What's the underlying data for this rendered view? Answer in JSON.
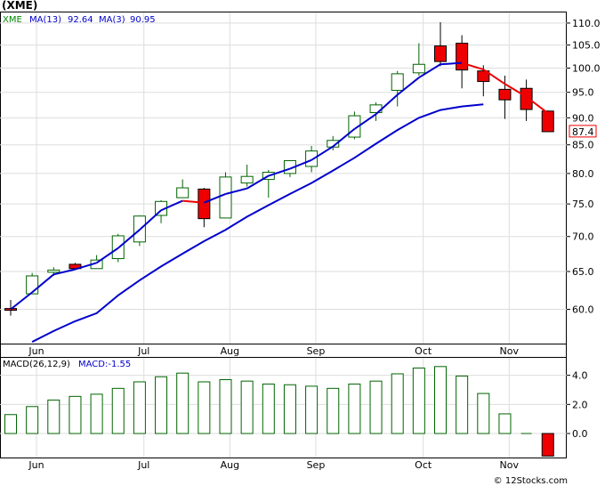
{
  "ticker_label": "(XME)",
  "watermark": "© 12Stocks.com",
  "colors": {
    "up": "#006400",
    "down": "#ee0000",
    "ma13": "#0000cc",
    "ma3_up": "#0000cc",
    "ma3_down": "#ee0000",
    "legend_symbol": "#008800",
    "macd_bar": "#006400",
    "macd_bar_neg": "#ee0000",
    "frame": "#000000",
    "grid": "#dddddd"
  },
  "legend": {
    "symbol": "XME",
    "ma13_label": "MA(13)",
    "ma13_value": "92.64",
    "ma3_label": "MA(3)",
    "ma3_value": "90.95"
  },
  "price_label": "87.4",
  "macd_legend": {
    "name": "MACD(26,12,9)",
    "value_text": "MACD:-1.55"
  },
  "chart_data": [
    {
      "type": "candlestick",
      "title": "(XME)",
      "y_ticks": [
        60,
        65,
        70,
        75,
        80,
        85,
        90,
        95,
        100,
        105,
        110
      ],
      "y_tick_labels": [
        "60.0",
        "65.0",
        "70.0",
        "75.0",
        "80.0",
        "85.0",
        "90.0",
        "95.0",
        "100.0",
        "105.0",
        "110.0"
      ],
      "ylim": [
        55.8,
        112.5
      ],
      "log_scale": true,
      "x_month_labels": [
        {
          "label": "Jun",
          "bar": 1.2
        },
        {
          "label": "Jul",
          "bar": 6.2
        },
        {
          "label": "Aug",
          "bar": 10.2
        },
        {
          "label": "Sep",
          "bar": 14.2
        },
        {
          "label": "Oct",
          "bar": 19.2
        },
        {
          "label": "Nov",
          "bar": 23.2
        }
      ],
      "bars": [
        {
          "open": 60.1,
          "high": 61.2,
          "low": 59.2,
          "close": 59.9
        },
        {
          "open": 62.0,
          "high": 64.8,
          "low": 62.0,
          "close": 64.4
        },
        {
          "open": 64.9,
          "high": 65.6,
          "low": 64.4,
          "close": 65.2
        },
        {
          "open": 66.0,
          "high": 66.2,
          "low": 65.2,
          "close": 65.4
        },
        {
          "open": 65.4,
          "high": 67.3,
          "low": 65.4,
          "close": 66.6
        },
        {
          "open": 66.8,
          "high": 70.4,
          "low": 66.3,
          "close": 70.1
        },
        {
          "open": 69.2,
          "high": 73.2,
          "low": 68.6,
          "close": 73.1
        },
        {
          "open": 73.2,
          "high": 75.6,
          "low": 72.0,
          "close": 75.4
        },
        {
          "open": 76.0,
          "high": 79.0,
          "low": 76.0,
          "close": 77.6
        },
        {
          "open": 77.4,
          "high": 77.6,
          "low": 71.4,
          "close": 72.7
        },
        {
          "open": 72.8,
          "high": 80.2,
          "low": 72.8,
          "close": 79.4
        },
        {
          "open": 78.4,
          "high": 81.5,
          "low": 77.8,
          "close": 79.5
        },
        {
          "open": 79.0,
          "high": 80.6,
          "low": 76.0,
          "close": 80.2
        },
        {
          "open": 80.0,
          "high": 82.2,
          "low": 79.4,
          "close": 82.2
        },
        {
          "open": 81.2,
          "high": 84.8,
          "low": 80.2,
          "close": 83.9
        },
        {
          "open": 84.6,
          "high": 86.6,
          "low": 84.0,
          "close": 85.8
        },
        {
          "open": 86.4,
          "high": 91.2,
          "low": 86.0,
          "close": 90.4
        },
        {
          "open": 91.0,
          "high": 93.0,
          "low": 89.4,
          "close": 92.5
        },
        {
          "open": 95.4,
          "high": 99.4,
          "low": 92.2,
          "close": 98.8
        },
        {
          "open": 99.0,
          "high": 105.4,
          "low": 98.4,
          "close": 100.8
        },
        {
          "open": 104.8,
          "high": 110.2,
          "low": 100.4,
          "close": 101.4
        },
        {
          "open": 105.4,
          "high": 107.2,
          "low": 95.8,
          "close": 99.6
        },
        {
          "open": 99.4,
          "high": 100.6,
          "low": 94.2,
          "close": 97.2
        },
        {
          "open": 95.6,
          "high": 98.4,
          "low": 89.8,
          "close": 93.5
        },
        {
          "open": 95.8,
          "high": 97.6,
          "low": 89.4,
          "close": 91.6
        },
        {
          "open": 91.3,
          "high": 91.4,
          "low": 87.4,
          "close": 87.4
        }
      ],
      "ma13": [
        56.0,
        57.3,
        58.5,
        59.5,
        61.8,
        63.8,
        65.7,
        67.5,
        69.3,
        71.0,
        73.0,
        74.8,
        76.6,
        78.4,
        80.5,
        82.7,
        85.2,
        87.7,
        90.0,
        91.5,
        92.2,
        92.6
      ],
      "ma13_start_bar": 1,
      "ma3": [
        60.0,
        62.2,
        64.6,
        65.3,
        66.2,
        68.3,
        71.0,
        74.0,
        75.5,
        75.2,
        76.6,
        77.5,
        79.6,
        80.8,
        82.3,
        84.7,
        87.9,
        90.7,
        94.5,
        98.0,
        100.8,
        101.1,
        99.7,
        96.7,
        94.1,
        90.9
      ]
    },
    {
      "type": "bar",
      "title": "MACD(26,12,9)",
      "y_ticks": [
        0,
        2,
        4
      ],
      "y_tick_labels": [
        "0.0",
        "2.0",
        "4.0"
      ],
      "ylim": [
        -1.65,
        5.2
      ],
      "values": [
        1.3,
        1.85,
        2.3,
        2.55,
        2.7,
        3.1,
        3.55,
        3.9,
        4.15,
        3.55,
        3.7,
        3.6,
        3.4,
        3.35,
        3.25,
        3.1,
        3.4,
        3.6,
        4.1,
        4.5,
        4.6,
        3.95,
        2.75,
        1.35,
        0.0,
        -1.55
      ]
    }
  ]
}
